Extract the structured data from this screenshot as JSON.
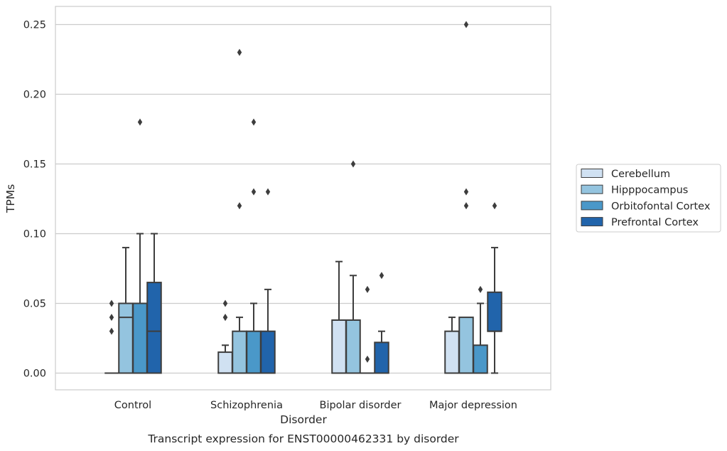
{
  "chart_data": {
    "type": "box",
    "title": "",
    "caption": "Transcript expression for ENST00000462331 by disorder",
    "xlabel": "Disorder",
    "ylabel": "TPMs",
    "ylim": [
      -0.012,
      0.263
    ],
    "yticks": [
      "0.00",
      "0.05",
      "0.10",
      "0.15",
      "0.20",
      "0.25"
    ],
    "ytick_values": [
      0.0,
      0.05,
      0.1,
      0.15,
      0.2,
      0.25
    ],
    "grid": "horizontal",
    "legend_position": "right",
    "categories": [
      "Control",
      "Schizophrenia",
      "Bipolar disorder",
      "Major depression"
    ],
    "series": [
      {
        "name": "Cerebellum",
        "color": "#d0e1f2",
        "boxes": [
          {
            "whislo": 0.0,
            "q1": 0.0,
            "med": 0.0,
            "q3": 0.0,
            "whishi": 0.0,
            "fliers": [
              0.03,
              0.04,
              0.05
            ]
          },
          {
            "whislo": 0.0,
            "q1": 0.0,
            "med": 0.0,
            "q3": 0.015,
            "whishi": 0.02,
            "fliers": [
              0.04,
              0.04,
              0.05
            ]
          },
          {
            "whislo": 0.0,
            "q1": 0.0,
            "med": 0.0,
            "q3": 0.038,
            "whishi": 0.08,
            "fliers": []
          },
          {
            "whislo": 0.0,
            "q1": 0.0,
            "med": 0.0,
            "q3": 0.03,
            "whishi": 0.04,
            "fliers": []
          }
        ]
      },
      {
        "name": "Hipppocampus",
        "color": "#94c4df",
        "boxes": [
          {
            "whislo": 0.0,
            "q1": 0.0,
            "med": 0.04,
            "q3": 0.05,
            "whishi": 0.09,
            "fliers": []
          },
          {
            "whislo": 0.0,
            "q1": 0.0,
            "med": 0.0,
            "q3": 0.03,
            "whishi": 0.04,
            "fliers": [
              0.12,
              0.23
            ]
          },
          {
            "whislo": 0.0,
            "q1": 0.0,
            "med": 0.0,
            "q3": 0.038,
            "whishi": 0.07,
            "fliers": [
              0.15
            ]
          },
          {
            "whislo": 0.0,
            "q1": 0.0,
            "med": 0.0,
            "q3": 0.04,
            "whishi": 0.04,
            "fliers": [
              0.12,
              0.13,
              0.25
            ]
          }
        ]
      },
      {
        "name": "Orbitofontal Cortex",
        "color": "#4a98c9",
        "boxes": [
          {
            "whislo": 0.0,
            "q1": 0.0,
            "med": 0.0,
            "q3": 0.05,
            "whishi": 0.1,
            "fliers": [
              0.18
            ]
          },
          {
            "whislo": 0.0,
            "q1": 0.0,
            "med": 0.0,
            "q3": 0.03,
            "whishi": 0.05,
            "fliers": [
              0.13,
              0.18
            ]
          },
          {
            "whislo": 0.0,
            "q1": 0.0,
            "med": 0.0,
            "q3": 0.0,
            "whishi": 0.0,
            "fliers": [
              0.01,
              0.06
            ]
          },
          {
            "whislo": 0.0,
            "q1": 0.0,
            "med": 0.0,
            "q3": 0.02,
            "whishi": 0.05,
            "fliers": [
              0.06
            ]
          }
        ]
      },
      {
        "name": "Prefrontal Cortex",
        "color": "#2164ab",
        "boxes": [
          {
            "whislo": 0.0,
            "q1": 0.0,
            "med": 0.03,
            "q3": 0.065,
            "whishi": 0.1,
            "fliers": []
          },
          {
            "whislo": 0.0,
            "q1": 0.0,
            "med": 0.0,
            "q3": 0.03,
            "whishi": 0.06,
            "fliers": [
              0.13
            ]
          },
          {
            "whislo": 0.0,
            "q1": 0.0,
            "med": 0.0,
            "q3": 0.022,
            "whishi": 0.03,
            "fliers": [
              0.07
            ]
          },
          {
            "whislo": 0.0,
            "q1": 0.03,
            "med": 0.03,
            "q3": 0.058,
            "whishi": 0.09,
            "fliers": [
              0.12
            ]
          }
        ]
      }
    ]
  }
}
